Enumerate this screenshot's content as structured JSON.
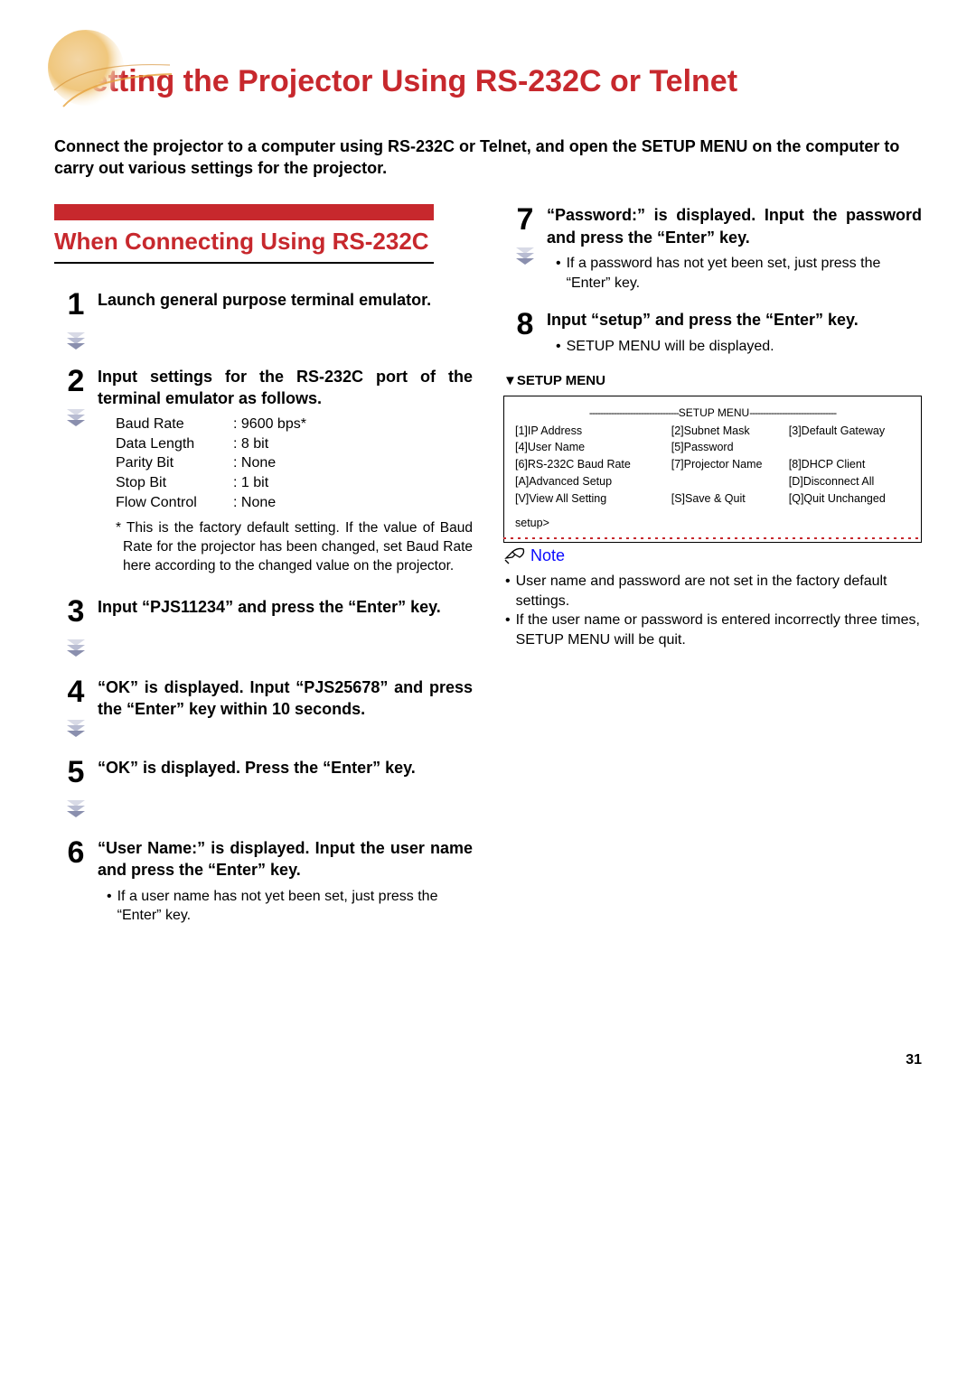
{
  "title": "Setting the Projector Using RS-232C or Telnet",
  "lead": "Connect the projector to a computer using RS-232C or Telnet, and open the SETUP MENU on the computer to carry out various settings for the projector.",
  "section_heading": "When Connecting Using RS-232C",
  "colors": {
    "accent_red": "#c7282d",
    "note_blue": "#0a0aff",
    "chevron1": "#8a8fae",
    "chevron2": "#b8bcd2",
    "chevron3": "#d8dae6"
  },
  "steps_left": [
    {
      "n": "1",
      "title": "Launch general purpose terminal emulator.",
      "chev": true
    },
    {
      "n": "2",
      "title": "Input settings for the RS-232C port of the terminal emulator as follows.",
      "chev": true,
      "settings": [
        {
          "label": "Baud Rate",
          "value": ": 9600 bps*"
        },
        {
          "label": "Data Length",
          "value": ": 8 bit"
        },
        {
          "label": "Parity Bit",
          "value": ": None"
        },
        {
          "label": "Stop Bit",
          "value": ": 1 bit"
        },
        {
          "label": "Flow Control",
          "value": ": None"
        }
      ],
      "footnote": "* This is the factory default setting. If the value of Baud Rate for the projector has been changed, set Baud Rate here according to the changed value on the projector."
    },
    {
      "n": "3",
      "title": "Input “PJS11234” and press the “Enter” key.",
      "chev": true
    },
    {
      "n": "4",
      "title": "“OK” is displayed. Input “PJS25678” and press the “Enter” key within 10 seconds.",
      "chev": true
    },
    {
      "n": "5",
      "title": "“OK” is displayed. Press the “Enter” key.",
      "chev": true
    },
    {
      "n": "6",
      "title": "“User Name:” is displayed. Input the user name and press the “Enter” key.",
      "chev": false,
      "bullets": [
        "If a user name has not yet been set, just press the “Enter” key."
      ]
    }
  ],
  "steps_right": [
    {
      "n": "7",
      "title": "“Password:” is displayed. Input the password and press the “Enter” key.",
      "chev": true,
      "bullets": [
        "If a password has not yet been set, just press the “Enter” key."
      ]
    },
    {
      "n": "8",
      "title": "Input “setup” and press the “Enter” key.",
      "chev": false,
      "bullets": [
        "SETUP MENU will be displayed."
      ]
    }
  ],
  "setup_caption": "▼SETUP MENU",
  "setup_header": "SETUP MENU",
  "setup_items_row1": [
    "[1]IP Address",
    "[2]Subnet Mask",
    "[3]Default Gateway"
  ],
  "setup_items_row2": [
    "[4]User Name",
    "[5]Password",
    ""
  ],
  "setup_items_row3": [
    "[6]RS-232C Baud Rate",
    "[7]Projector Name",
    "[8]DHCP Client"
  ],
  "setup_items_row4": [
    "[A]Advanced Setup",
    "",
    "[D]Disconnect All"
  ],
  "setup_items_row5": [
    "[V]View All Setting",
    "[S]Save & Quit",
    "[Q]Quit Unchanged"
  ],
  "setup_prompt": "setup>",
  "note_label": "Note",
  "notes": [
    "User name and password are not set in the factory default settings.",
    "If the user name or password is entered incorrectly three times, SETUP MENU will be quit."
  ],
  "page_number": "31"
}
